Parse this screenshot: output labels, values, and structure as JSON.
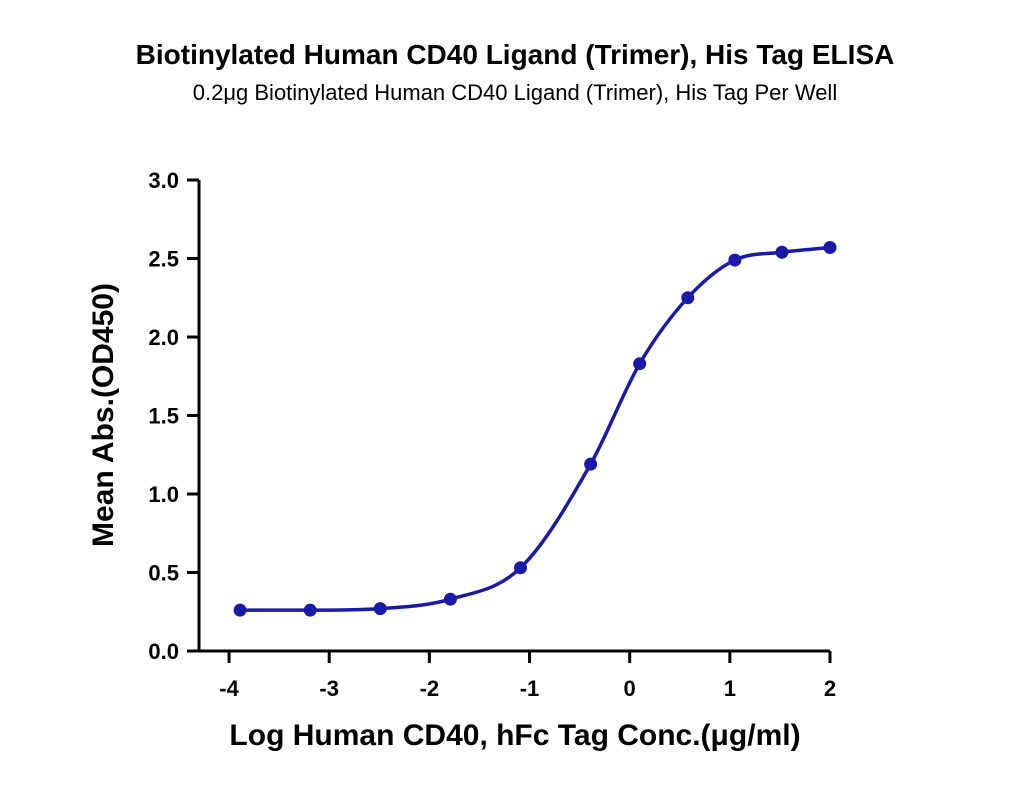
{
  "chart_data": {
    "type": "line",
    "title": "Biotinylated Human CD40 Ligand (Trimer), His Tag ELISA",
    "subtitle": "0.2μg Biotinylated Human CD40 Ligand (Trimer), His Tag Per Well",
    "xlabel": "Log Human CD40, hFc Tag Conc.(μg/ml)",
    "ylabel": "Mean Abs.(OD450)",
    "xlim": [
      -4.3,
      2.0
    ],
    "ylim": [
      0.0,
      3.0
    ],
    "xticks": [
      -4,
      -3,
      -2,
      -1,
      0,
      1,
      2
    ],
    "xtick_labels": [
      "-4",
      "-3",
      "-2",
      "-1",
      "0",
      "1",
      "2"
    ],
    "yticks": [
      0.0,
      0.5,
      1.0,
      1.5,
      2.0,
      2.5,
      3.0
    ],
    "ytick_labels": [
      "0.0",
      "0.5",
      "1.0",
      "1.5",
      "2.0",
      "2.5",
      "3.0"
    ],
    "grid": false,
    "series": [
      {
        "color": "#1a1aa8",
        "marker": "circle",
        "fit": "sigmoid",
        "x": [
          -3.89,
          -3.19,
          -2.49,
          -1.79,
          -1.09,
          -0.39,
          0.1,
          0.58,
          1.05,
          1.52,
          2.0
        ],
        "y": [
          0.26,
          0.26,
          0.27,
          0.33,
          0.53,
          1.19,
          1.83,
          2.25,
          2.49,
          2.54,
          2.57
        ]
      }
    ]
  }
}
